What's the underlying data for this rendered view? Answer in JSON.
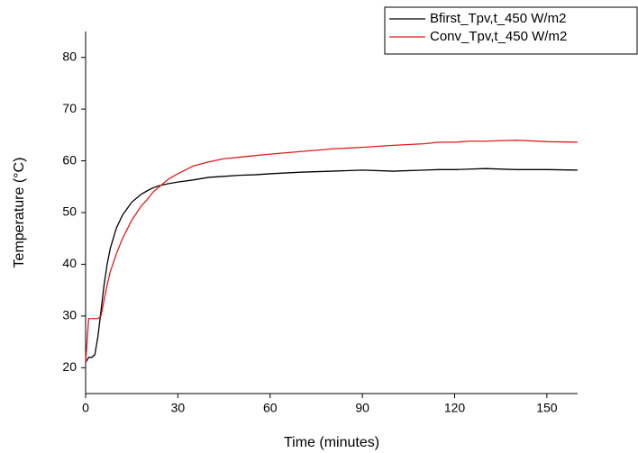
{
  "chart_data": {
    "type": "line",
    "xlabel": "Time (minutes)",
    "ylabel": "Temperature (°C)",
    "x": [
      0,
      1,
      2,
      3,
      4,
      5,
      6,
      7,
      8,
      10,
      12,
      15,
      18,
      20,
      22,
      24,
      27,
      30,
      35,
      40,
      45,
      50,
      55,
      60,
      70,
      80,
      90,
      100,
      110,
      115,
      120,
      125,
      130,
      140,
      150,
      160
    ],
    "series": [
      {
        "name": "Bfirst_Tpv,t_450 W/m2",
        "color": "#000000",
        "values": [
          21,
          22,
          22,
          22.5,
          26,
          31,
          36,
          40,
          43,
          47,
          49.5,
          52,
          53.5,
          54.2,
          54.8,
          55.2,
          55.6,
          55.9,
          56.3,
          56.8,
          57,
          57.2,
          57.3,
          57.5,
          57.8,
          58,
          58.2,
          58,
          58.2,
          58.3,
          58.3,
          58.4,
          58.5,
          58.3,
          58.3,
          58.2
        ]
      },
      {
        "name": "Conv_Tpv,t_450 W/m2",
        "color": "#e31a1c",
        "values": [
          21,
          29.5,
          29.5,
          29.5,
          29.5,
          30,
          33,
          36,
          38.5,
          42,
          45,
          48.5,
          51.2,
          52.5,
          54,
          55,
          56.5,
          57.5,
          59,
          59.8,
          60.4,
          60.7,
          61,
          61.3,
          61.8,
          62.3,
          62.6,
          63,
          63.3,
          63.6,
          63.6,
          63.8,
          63.8,
          64,
          63.7,
          63.6
        ]
      }
    ],
    "xlim": [
      0,
      160
    ],
    "xticks": [
      0,
      30,
      60,
      90,
      120,
      150
    ],
    "ylim": [
      15,
      85
    ],
    "yticks": [
      20,
      30,
      40,
      50,
      60,
      70,
      80
    ],
    "legend": "top-right"
  }
}
